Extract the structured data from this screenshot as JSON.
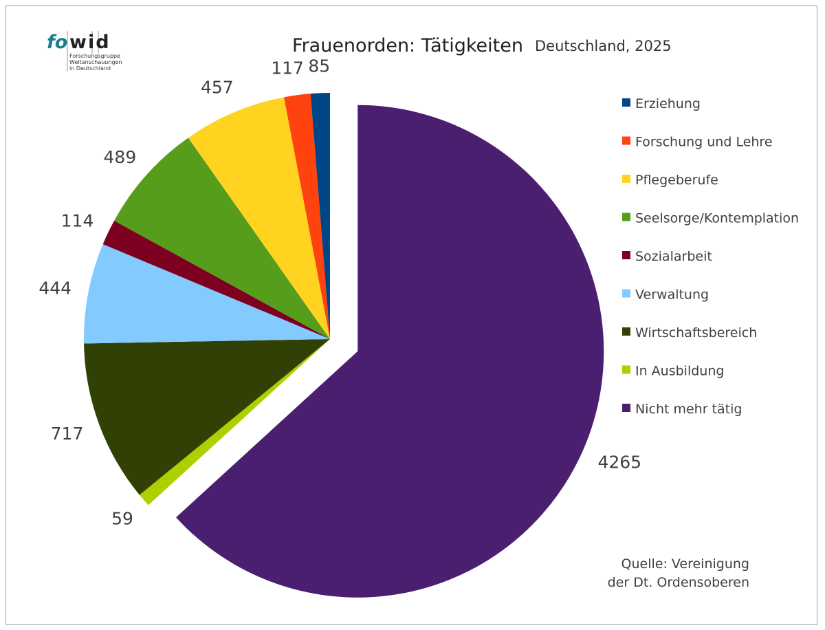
{
  "logo": {
    "text_a": "fo",
    "text_b": "wid",
    "lines": [
      "Forschungsgruppe",
      "Weltanschauungen",
      "in Deutschland"
    ]
  },
  "chart_data": {
    "type": "pie",
    "title": "Frauenorden: Tätigkeiten",
    "subtitle": "Deutschland, 2025",
    "source": [
      "Quelle: Vereinigung",
      "der Dt. Ordensoberen"
    ],
    "legend_position": "right",
    "categories": [
      "Erziehung",
      "Forschung und Lehre",
      "Pflegeberufe",
      "Seelsorge/Kontemplation",
      "Sozialarbeit",
      "Verwaltung",
      "Wirtschaftsbereich",
      "In Ausbildung",
      "Nicht mehr tätig"
    ],
    "values": [
      85,
      117,
      457,
      489,
      114,
      444,
      717,
      59,
      4265
    ],
    "colors": [
      "#004586",
      "#ff420e",
      "#ffd320",
      "#579d1c",
      "#7e0021",
      "#83caff",
      "#314004",
      "#aecf00",
      "#4b1f6f"
    ],
    "exploded": [
      "Nicht mehr tätig"
    ]
  }
}
